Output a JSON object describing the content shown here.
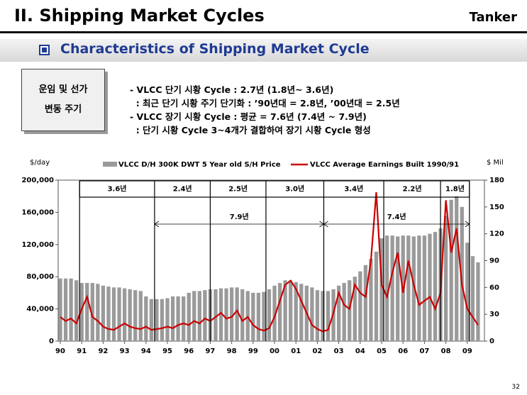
{
  "header": {
    "title": "II. Shipping Market Cycles",
    "tag": "Tanker"
  },
  "section": "Characteristics of Shipping Market Cycle",
  "box": [
    "운임 및 선가",
    "변동 주기"
  ],
  "bullets": [
    "- VLCC 단기 시황 Cycle : 2.7년 (1.8년~ 3.6년)",
    "  : 최근 단기 시황 주기 단기화 : ’90년대 = 2.8년, ’00년대 = 2.5년",
    "- VLCC 장기 시황 Cycle : 평균 = 7.6년 (7.4년 ~ 7.9년)",
    "  : 단기 시황 Cycle 3~4개가 결합하여 장기 시황 Cycle 형성"
  ],
  "page_number": "32",
  "chart_data": {
    "type": "bar_line",
    "ylabel": "$/day",
    "y2label": "$ Mil",
    "xlim": [
      1989.9,
      2009.8
    ],
    "xticks": [
      {
        "value": 1990,
        "label": "90"
      },
      {
        "value": 1991,
        "label": "91"
      },
      {
        "value": 1992,
        "label": "92"
      },
      {
        "value": 1993,
        "label": "93"
      },
      {
        "value": 1994,
        "label": "94"
      },
      {
        "value": 1995,
        "label": "95"
      },
      {
        "value": 1996,
        "label": "96"
      },
      {
        "value": 1997,
        "label": "97"
      },
      {
        "value": 1998,
        "label": "98"
      },
      {
        "value": 1999,
        "label": "99"
      },
      {
        "value": 2000,
        "label": "00"
      },
      {
        "value": 2001,
        "label": "01"
      },
      {
        "value": 2002,
        "label": "02"
      },
      {
        "value": 2003,
        "label": "03"
      },
      {
        "value": 2004,
        "label": "04"
      },
      {
        "value": 2005,
        "label": "05"
      },
      {
        "value": 2006,
        "label": "06"
      },
      {
        "value": 2007,
        "label": "07"
      },
      {
        "value": 2008,
        "label": "08"
      },
      {
        "value": 2009,
        "label": "09"
      }
    ],
    "ylim": [
      0,
      200000
    ],
    "yticks": [
      0,
      {
        "value": 40000,
        "label": "40,000"
      },
      {
        "value": 80000,
        "label": "80,000"
      },
      {
        "value": 120000,
        "label": "120,000"
      },
      {
        "value": 160000,
        "label": "160,000"
      },
      {
        "value": 200000,
        "label": "200,000"
      }
    ],
    "y2lim": [
      0,
      180
    ],
    "y2ticks": [
      0,
      30,
      60,
      90,
      120,
      150,
      180
    ],
    "x": [
      1990,
      1990.25,
      1990.5,
      1990.75,
      1991,
      1991.25,
      1991.5,
      1991.75,
      1992,
      1992.25,
      1992.5,
      1992.75,
      1993,
      1993.25,
      1993.5,
      1993.75,
      1994,
      1994.25,
      1994.5,
      1994.75,
      1995,
      1995.25,
      1995.5,
      1995.75,
      1996,
      1996.25,
      1996.5,
      1996.75,
      1997,
      1997.25,
      1997.5,
      1997.75,
      1998,
      1998.25,
      1998.5,
      1998.75,
      1999,
      1999.25,
      1999.5,
      1999.75,
      2000,
      2000.25,
      2000.5,
      2000.75,
      2001,
      2001.25,
      2001.5,
      2001.75,
      2002,
      2002.25,
      2002.5,
      2002.75,
      2003,
      2003.25,
      2003.5,
      2003.75,
      2004,
      2004.25,
      2004.5,
      2004.75,
      2005,
      2005.25,
      2005.5,
      2005.75,
      2006,
      2006.25,
      2006.5,
      2006.75,
      2007,
      2007.25,
      2007.5,
      2007.75,
      2008,
      2008.25,
      2008.5,
      2008.75,
      2009,
      2009.25,
      2009.5
    ],
    "series": [
      {
        "name": "VLCC D/H 300K DWT 5 Year old S/H Price",
        "color": "#9a9a9a",
        "kind": "bar",
        "axis": "y2",
        "values": [
          70,
          70,
          70,
          68,
          65,
          65,
          65,
          64,
          62,
          61,
          60,
          60,
          59,
          58,
          57,
          56,
          50,
          47,
          47,
          47,
          48,
          50,
          50,
          50,
          54,
          56,
          56,
          57,
          58,
          58,
          59,
          59,
          60,
          60,
          58,
          56,
          54,
          54,
          55,
          58,
          62,
          65,
          68,
          68,
          66,
          64,
          62,
          60,
          57,
          56,
          56,
          58,
          62,
          65,
          68,
          72,
          78,
          85,
          92,
          100,
          115,
          118,
          118,
          117,
          118,
          118,
          117,
          118,
          118,
          120,
          122,
          126,
          140,
          158,
          162,
          150,
          110,
          95,
          88
        ]
      },
      {
        "name": "VLCC Average Earnings Built 1990/91",
        "color": "#cc0000",
        "kind": "line",
        "values": [
          30000,
          25000,
          28000,
          22000,
          40000,
          55000,
          30000,
          25000,
          18000,
          15000,
          14000,
          18000,
          22000,
          18000,
          16000,
          15000,
          18000,
          14000,
          15000,
          16000,
          18000,
          16000,
          20000,
          22000,
          20000,
          25000,
          22000,
          28000,
          25000,
          30000,
          35000,
          28000,
          30000,
          38000,
          25000,
          30000,
          20000,
          15000,
          13000,
          16000,
          30000,
          50000,
          70000,
          75000,
          65000,
          50000,
          35000,
          20000,
          15000,
          12000,
          14000,
          35000,
          60000,
          45000,
          40000,
          70000,
          60000,
          55000,
          100000,
          185000,
          70000,
          55000,
          85000,
          110000,
          60000,
          100000,
          70000,
          45000,
          50000,
          55000,
          40000,
          60000,
          175000,
          110000,
          140000,
          70000,
          40000,
          30000,
          20000
        ]
      }
    ],
    "cycles": [
      {
        "label": "3.6년",
        "start": 1990.9,
        "end": 1994.4
      },
      {
        "label": "2.4년",
        "start": 1994.4,
        "end": 1997.0
      },
      {
        "label": "2.5년",
        "start": 1997.0,
        "end": 1999.6
      },
      {
        "label": "3.0년",
        "start": 1999.6,
        "end": 2002.3
      },
      {
        "label": "3.4년",
        "start": 2002.3,
        "end": 2005.1
      },
      {
        "label": "2.2년",
        "start": 2005.1,
        "end": 2007.75
      },
      {
        "label": "1.8년",
        "start": 2007.75,
        "end": 2009.1
      }
    ],
    "long_cycles": [
      {
        "label": "7.9년",
        "start": 1994.4,
        "end": 2002.3
      },
      {
        "label": "7.4년",
        "start": 2002.3,
        "end": 2009.1
      }
    ]
  }
}
